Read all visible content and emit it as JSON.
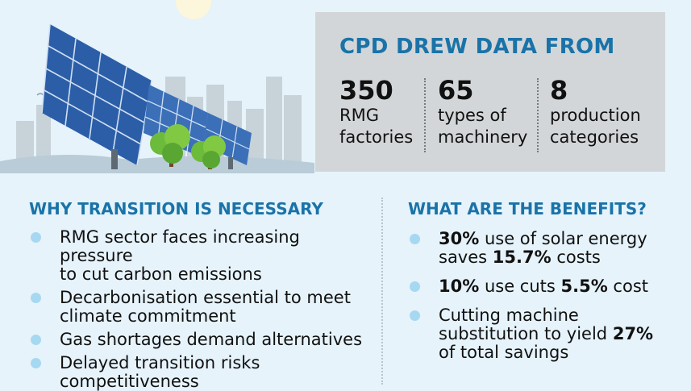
{
  "stats": {
    "title": "CPD DREW DATA FROM",
    "items": [
      {
        "number": "350",
        "line1": "RMG",
        "line2": "factories"
      },
      {
        "number": "65",
        "line1": "types of",
        "line2": "machinery"
      },
      {
        "number": "8",
        "line1": "production",
        "line2": "categories"
      }
    ]
  },
  "why": {
    "title": "WHY TRANSITION IS NECESSARY",
    "bullets": [
      {
        "l1": "RMG sector faces increasing pressure",
        "l2": "to cut carbon emissions"
      },
      {
        "l1": "Decarbonisation essential to meet",
        "l2": "climate commitment"
      },
      {
        "l1": "Gas shortages demand alternatives",
        "l2": ""
      },
      {
        "l1": "Delayed transition risks",
        "l2": "competitiveness"
      }
    ]
  },
  "benefits": {
    "title": "WHAT ARE THE BENEFITS?",
    "b1": {
      "bold1": "30%",
      "t1": " use of solar energy",
      "t2": "saves ",
      "bold2": "15.7%",
      "t3": " costs"
    },
    "b2": {
      "bold1": "10%",
      "t1": " use cuts ",
      "bold2": "5.5%",
      "t2": " cost"
    },
    "b3": {
      "l1": "Cutting machine",
      "l2a": "substitution to yield ",
      "bold": "27%",
      "l3": "of total savings"
    }
  },
  "colors": {
    "accent": "#1a73a8",
    "panel": "#d3d6d8",
    "background": "#e6f3fb",
    "bullet": "#a7d8f2"
  }
}
